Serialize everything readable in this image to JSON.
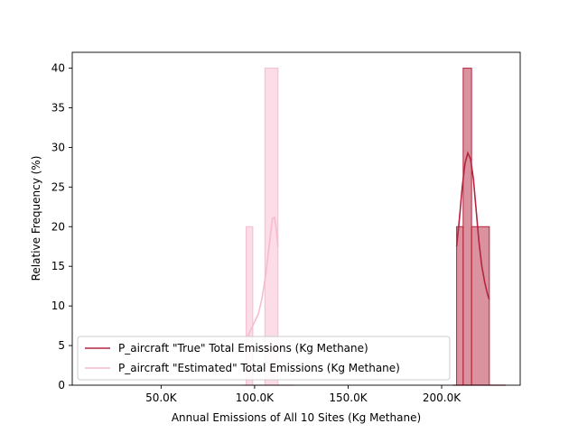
{
  "chart_data": {
    "type": "histogram",
    "xlabel": "Annual Emissions of All 10 Sites (Kg Methane)",
    "ylabel": "Relative Frequency (%)",
    "xlim": [
      2500,
      242000
    ],
    "ylim": [
      0,
      42
    ],
    "x_ticks": [
      {
        "value": 50000,
        "label": "50.0K"
      },
      {
        "value": 100000,
        "label": "100.0K"
      },
      {
        "value": 150000,
        "label": "150.0K"
      },
      {
        "value": 200000,
        "label": "200.0K"
      }
    ],
    "y_ticks": [
      0,
      5,
      10,
      15,
      20,
      25,
      30,
      35,
      40
    ],
    "legend_position": "lower-left",
    "series": [
      {
        "name": "P_aircraft \"Estimated\" Total Emissions (Kg Methane)",
        "color": "#f7bad0",
        "bins": [
          {
            "x0": 95500,
            "x1": 99000,
            "value": 20
          },
          {
            "x0": 99000,
            "x1": 105500,
            "value": 0
          },
          {
            "x0": 105500,
            "x1": 112500,
            "value": 40
          }
        ],
        "kde": [
          [
            96000,
            6
          ],
          [
            98000,
            7
          ],
          [
            100000,
            8
          ],
          [
            102000,
            9
          ],
          [
            104000,
            11
          ],
          [
            106000,
            14
          ],
          [
            108000,
            18
          ],
          [
            109500,
            21
          ],
          [
            110500,
            21.2
          ],
          [
            111500,
            20
          ],
          [
            112500,
            17.5
          ]
        ]
      },
      {
        "name": "P_aircraft \"True\" Total Emissions (Kg Methane)",
        "color": "#b5253e",
        "bins": [
          {
            "x0": 208000,
            "x1": 211500,
            "value": 20
          },
          {
            "x0": 211500,
            "x1": 216000,
            "value": 40
          },
          {
            "x0": 216000,
            "x1": 225500,
            "value": 20
          }
        ],
        "kde": [
          [
            208000,
            17.5
          ],
          [
            209500,
            21
          ],
          [
            211000,
            25
          ],
          [
            212500,
            28
          ],
          [
            214000,
            29.3
          ],
          [
            215500,
            28.5
          ],
          [
            217000,
            26
          ],
          [
            218500,
            22
          ],
          [
            220000,
            18
          ],
          [
            221500,
            15
          ],
          [
            223000,
            13
          ],
          [
            224500,
            11.5
          ],
          [
            225500,
            10.8
          ]
        ]
      }
    ]
  }
}
